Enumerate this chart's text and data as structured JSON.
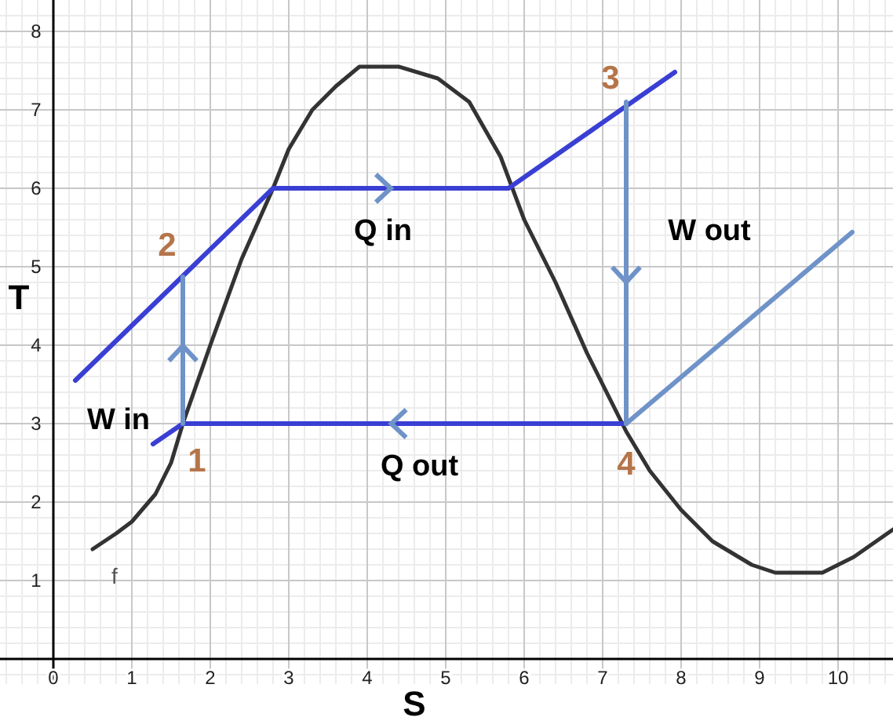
{
  "chart_data": {
    "type": "line",
    "xlabel": "S",
    "ylabel": "T",
    "xlim": [
      -0.68,
      10.7
    ],
    "ylim": [
      -0.32,
      8.4
    ],
    "xticks": [
      0,
      1,
      2,
      3,
      4,
      5,
      6,
      7,
      8,
      9,
      10
    ],
    "yticks": [
      1,
      2,
      3,
      4,
      5,
      6,
      7,
      8
    ],
    "grid": true,
    "marker": "none",
    "line_style": "solid",
    "series": [
      {
        "name": "f",
        "color": "#333333",
        "x": [
          0.5,
          0.8,
          1.0,
          1.3,
          1.5,
          1.65,
          2.0,
          2.4,
          2.8,
          3.0,
          3.3,
          3.6,
          3.9,
          4.4,
          4.9,
          5.3,
          5.7,
          6.0,
          6.4,
          6.8,
          7.1,
          7.3,
          7.6,
          8.0,
          8.4,
          8.9,
          9.2,
          9.8,
          10.2,
          10.7
        ],
        "values": [
          1.4,
          1.6,
          1.75,
          2.1,
          2.5,
          3.0,
          4.0,
          5.1,
          6.0,
          6.5,
          7.0,
          7.3,
          7.55,
          7.55,
          7.4,
          7.1,
          6.4,
          5.6,
          4.8,
          3.9,
          3.3,
          2.9,
          2.4,
          1.9,
          1.5,
          1.2,
          1.1,
          1.1,
          1.3,
          1.65
        ]
      },
      {
        "color": "#3a3fd4",
        "x": [
          0.28,
          2.8,
          5.8,
          7.92
        ],
        "values": [
          3.55,
          6.0,
          6.0,
          7.48
        ]
      },
      {
        "color": "#3a3fd4",
        "x": [
          7.3,
          1.65,
          1.27
        ],
        "values": [
          3.0,
          3.0,
          2.74
        ]
      },
      {
        "color": "#6f93c8",
        "x": [
          1.65,
          1.65
        ],
        "values": [
          3.0,
          4.87
        ]
      },
      {
        "color": "#6f93c8",
        "x": [
          7.3,
          7.3
        ],
        "values": [
          7.1,
          3.0
        ]
      },
      {
        "color": "#6f93c8",
        "x": [
          7.3,
          10.18
        ],
        "values": [
          3.0,
          5.44
        ]
      }
    ],
    "annotations": [
      "1",
      "2",
      "3",
      "4",
      "Q in",
      "Q out",
      "W in",
      "W out"
    ]
  }
}
